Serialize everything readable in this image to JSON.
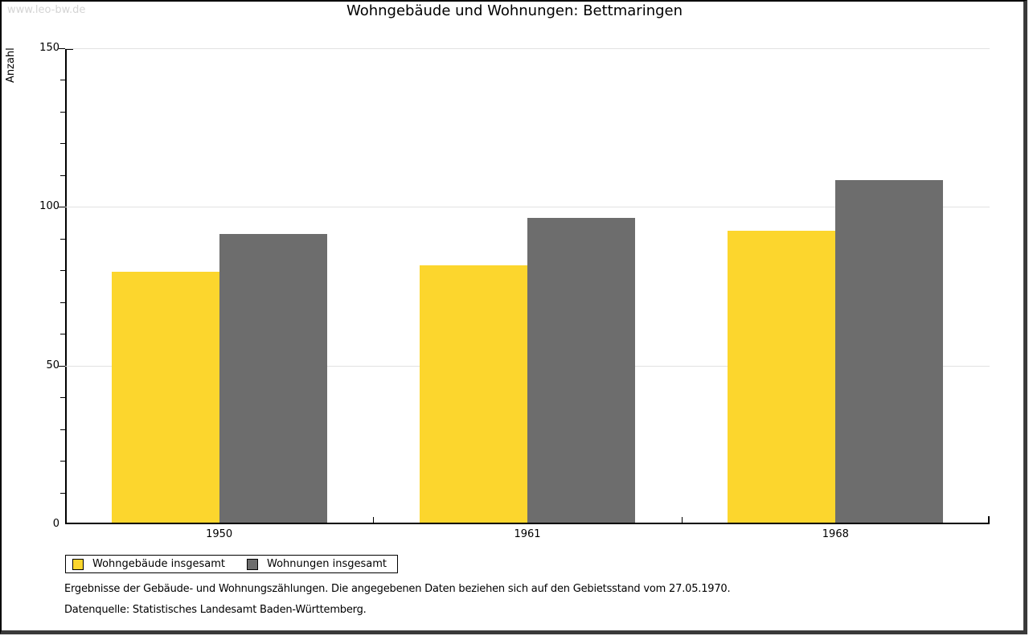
{
  "watermark": "www.leo-bw.de",
  "title": "Wohngebäude und Wohnungen: Bettmaringen",
  "chart_data": {
    "type": "bar",
    "title": "Wohngebäude und Wohnungen: Bettmaringen",
    "categories": [
      "1950",
      "1961",
      "1968"
    ],
    "series": [
      {
        "name": "Wohngebäude insgesamt",
        "color": "#FCD62D",
        "values": [
          79,
          81,
          92
        ]
      },
      {
        "name": "Wohnungen insgesamt",
        "color": "#6D6D6D",
        "values": [
          91,
          96,
          108
        ]
      }
    ],
    "xlabel": "",
    "ylabel": "Anzahl",
    "ylim": [
      0,
      150
    ],
    "yticks": [
      0,
      50,
      100,
      150
    ],
    "minor_tick_step": 10,
    "grid": true,
    "legend_position": "bottom-left"
  },
  "footer": {
    "line1": "Ergebnisse der Gebäude- und Wohnungszählungen. Die angegebenen Daten beziehen sich auf den Gebietsstand vom 27.05.1970.",
    "line2": "Datenquelle: Statistisches Landesamt Baden-Württemberg."
  }
}
